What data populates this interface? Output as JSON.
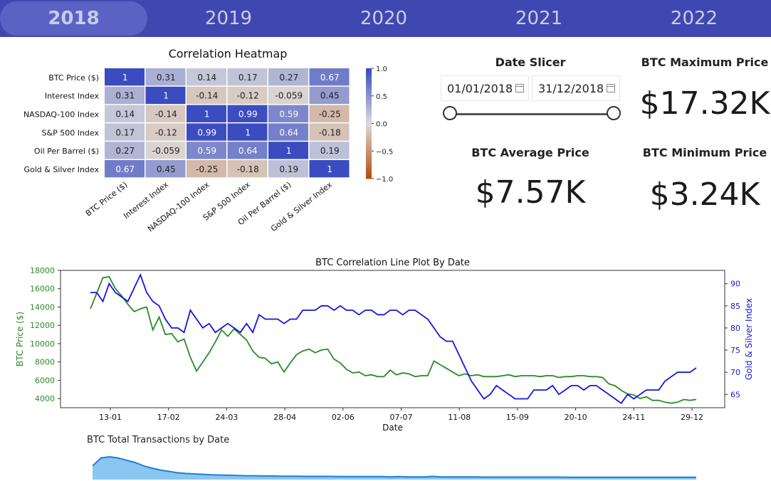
{
  "year_tabs": [
    "2018",
    "2019",
    "2020",
    "2021",
    "2022"
  ],
  "active_year": "2018",
  "heatmap": {
    "title": "Correlation Heatmap",
    "labels": [
      "BTC Price ($)",
      "Interest Index",
      "NASDAQ-100 Index",
      "S&P 500 Index",
      "Oil Per Barrel ($)",
      "Gold & Silver Index"
    ],
    "values": [
      [
        "1",
        "0.31",
        "0.14",
        "0.17",
        "0.27",
        "0.67"
      ],
      [
        "0.31",
        "1",
        "-0.14",
        "-0.12",
        "-0.059",
        "0.45"
      ],
      [
        "0.14",
        "-0.14",
        "1",
        "0.99",
        "0.59",
        "-0.25"
      ],
      [
        "0.17",
        "-0.12",
        "0.99",
        "1",
        "0.64",
        "-0.18"
      ],
      [
        "0.27",
        "-0.059",
        "0.59",
        "0.64",
        "1",
        "0.19"
      ],
      [
        "0.67",
        "0.45",
        "-0.25",
        "-0.18",
        "0.19",
        "1"
      ]
    ],
    "colorbar_ticks": [
      "1.0",
      "0.5",
      "0.0",
      "−0.5",
      "−1.0"
    ],
    "colors": {
      "pos": "#3b4cc0",
      "neu": "#dcdcdc",
      "neg": "#b4500f"
    }
  },
  "date_slicer": {
    "title": "Date Slicer",
    "start": "01/01/2018",
    "end": "31/12/2018"
  },
  "kpis": {
    "max_title": "BTC Maximum Price",
    "max_value": "$17.32K",
    "avg_title": "BTC Average Price",
    "avg_value": "$7.57K",
    "min_title": "BTC Minimum Price",
    "min_value": "$3.24K"
  },
  "chart_data": [
    {
      "type": "line",
      "title": "BTC Correlation Line Plot By Date",
      "xlabel": "Date",
      "ylabel": "BTC Price ($)",
      "y2label": "Gold & Silver Index",
      "ylim": [
        3000,
        18000
      ],
      "y2lim": [
        62,
        93
      ],
      "x_ticks": [
        "13-01",
        "17-02",
        "24-03",
        "28-04",
        "02-06",
        "07-07",
        "11-08",
        "15-09",
        "20-10",
        "24-11",
        "29-12"
      ],
      "y_ticks": [
        4000,
        6000,
        8000,
        10000,
        12000,
        14000,
        16000,
        18000
      ],
      "y2_ticks": [
        65,
        70,
        75,
        80,
        85,
        90
      ],
      "series": [
        {
          "name": "BTC Price ($)",
          "color": "#2a8a2a",
          "axis": "left",
          "values": [
            13800,
            15500,
            17200,
            17300,
            16000,
            15200,
            14300,
            13500,
            13800,
            14000,
            11500,
            12900,
            11000,
            11100,
            10200,
            10500,
            8500,
            7000,
            8000,
            9000,
            10200,
            11500,
            10800,
            11600,
            11000,
            10400,
            9200,
            8500,
            8400,
            7800,
            8000,
            6900,
            7900,
            8800,
            9200,
            9400,
            9000,
            9300,
            9400,
            8300,
            7900,
            7200,
            6800,
            6900,
            6500,
            6600,
            6400,
            6400,
            7100,
            6600,
            6800,
            6700,
            6400,
            6500,
            6500,
            8100,
            7700,
            7300,
            6900,
            6500,
            6700,
            6500,
            6600,
            6400,
            6400,
            6400,
            6500,
            6600,
            6400,
            6500,
            6500,
            6500,
            6400,
            6500,
            6500,
            6300,
            6400,
            6400,
            6500,
            6500,
            6400,
            6400,
            6300,
            5600,
            5400,
            4900,
            4500,
            4400,
            4000,
            4200,
            3800,
            3800,
            3600,
            3500,
            3600,
            3900,
            3800,
            3900
          ]
        },
        {
          "name": "Gold & Silver Index",
          "color": "#1515dd",
          "axis": "right",
          "values": [
            88,
            88,
            86,
            90,
            88,
            87,
            86,
            89,
            92,
            88,
            86,
            85,
            82,
            80,
            80,
            79,
            84,
            82,
            80,
            81,
            79,
            80,
            81,
            80,
            79,
            81,
            79,
            83,
            82,
            82,
            82,
            81,
            82,
            82,
            84,
            84,
            84,
            85,
            85,
            84,
            85,
            84,
            84,
            83,
            84,
            84,
            83,
            83,
            84,
            84,
            83,
            84,
            84,
            83,
            82,
            80,
            78,
            77,
            77,
            74,
            71,
            68,
            66,
            64,
            65,
            67,
            66,
            65,
            64,
            64,
            64,
            66,
            66,
            66,
            67,
            65,
            66,
            67,
            67,
            66,
            67,
            67,
            66,
            65,
            64,
            63,
            65,
            64,
            65,
            66,
            66,
            66,
            68,
            69,
            70,
            70,
            70,
            71
          ]
        }
      ]
    },
    {
      "type": "area",
      "title": "BTC Total Transactions by Date",
      "series": [
        {
          "name": "BTC Total Transactions",
          "color": "#5aaeea",
          "values": [
            60,
            95,
            100,
            95,
            85,
            75,
            60,
            50,
            42,
            36,
            30,
            27,
            25,
            23,
            21,
            20,
            19,
            18,
            17,
            17,
            16,
            16,
            15,
            15,
            15,
            14,
            14,
            14,
            14,
            13,
            13,
            13,
            13,
            13,
            13,
            12,
            13,
            12,
            12,
            12,
            14,
            12,
            12,
            12,
            12,
            12,
            11,
            11,
            11,
            11,
            11,
            11,
            11,
            11,
            11,
            11,
            10,
            10,
            10,
            10,
            10,
            10,
            10,
            10,
            10,
            10,
            10,
            10,
            10,
            10,
            10,
            10
          ]
        }
      ]
    }
  ]
}
